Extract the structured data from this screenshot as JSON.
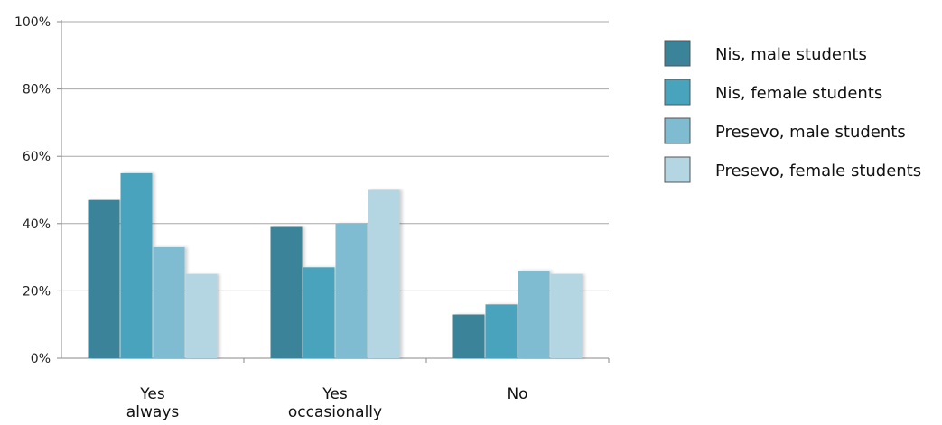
{
  "chart_data": {
    "type": "bar",
    "categories": [
      [
        "Yes",
        "always"
      ],
      [
        "Yes",
        "occasionally"
      ],
      [
        "No"
      ]
    ],
    "series": [
      {
        "name": "Nis, male students",
        "values": [
          47,
          39,
          13
        ],
        "color": "#3b8399"
      },
      {
        "name": "Nis, female students",
        "values": [
          55,
          27,
          16
        ],
        "color": "#48a3bd"
      },
      {
        "name": "Presevo, male students",
        "values": [
          33,
          40,
          26
        ],
        "color": "#7fbcd2"
      },
      {
        "name": "Presevo, female students",
        "values": [
          25,
          50,
          25
        ],
        "color": "#b4d6e2"
      }
    ],
    "yticks": [
      "0%",
      "20%",
      "40%",
      "60%",
      "80%",
      "100%"
    ],
    "ylim": [
      0,
      100
    ],
    "grid": true,
    "legend_position": "right"
  }
}
